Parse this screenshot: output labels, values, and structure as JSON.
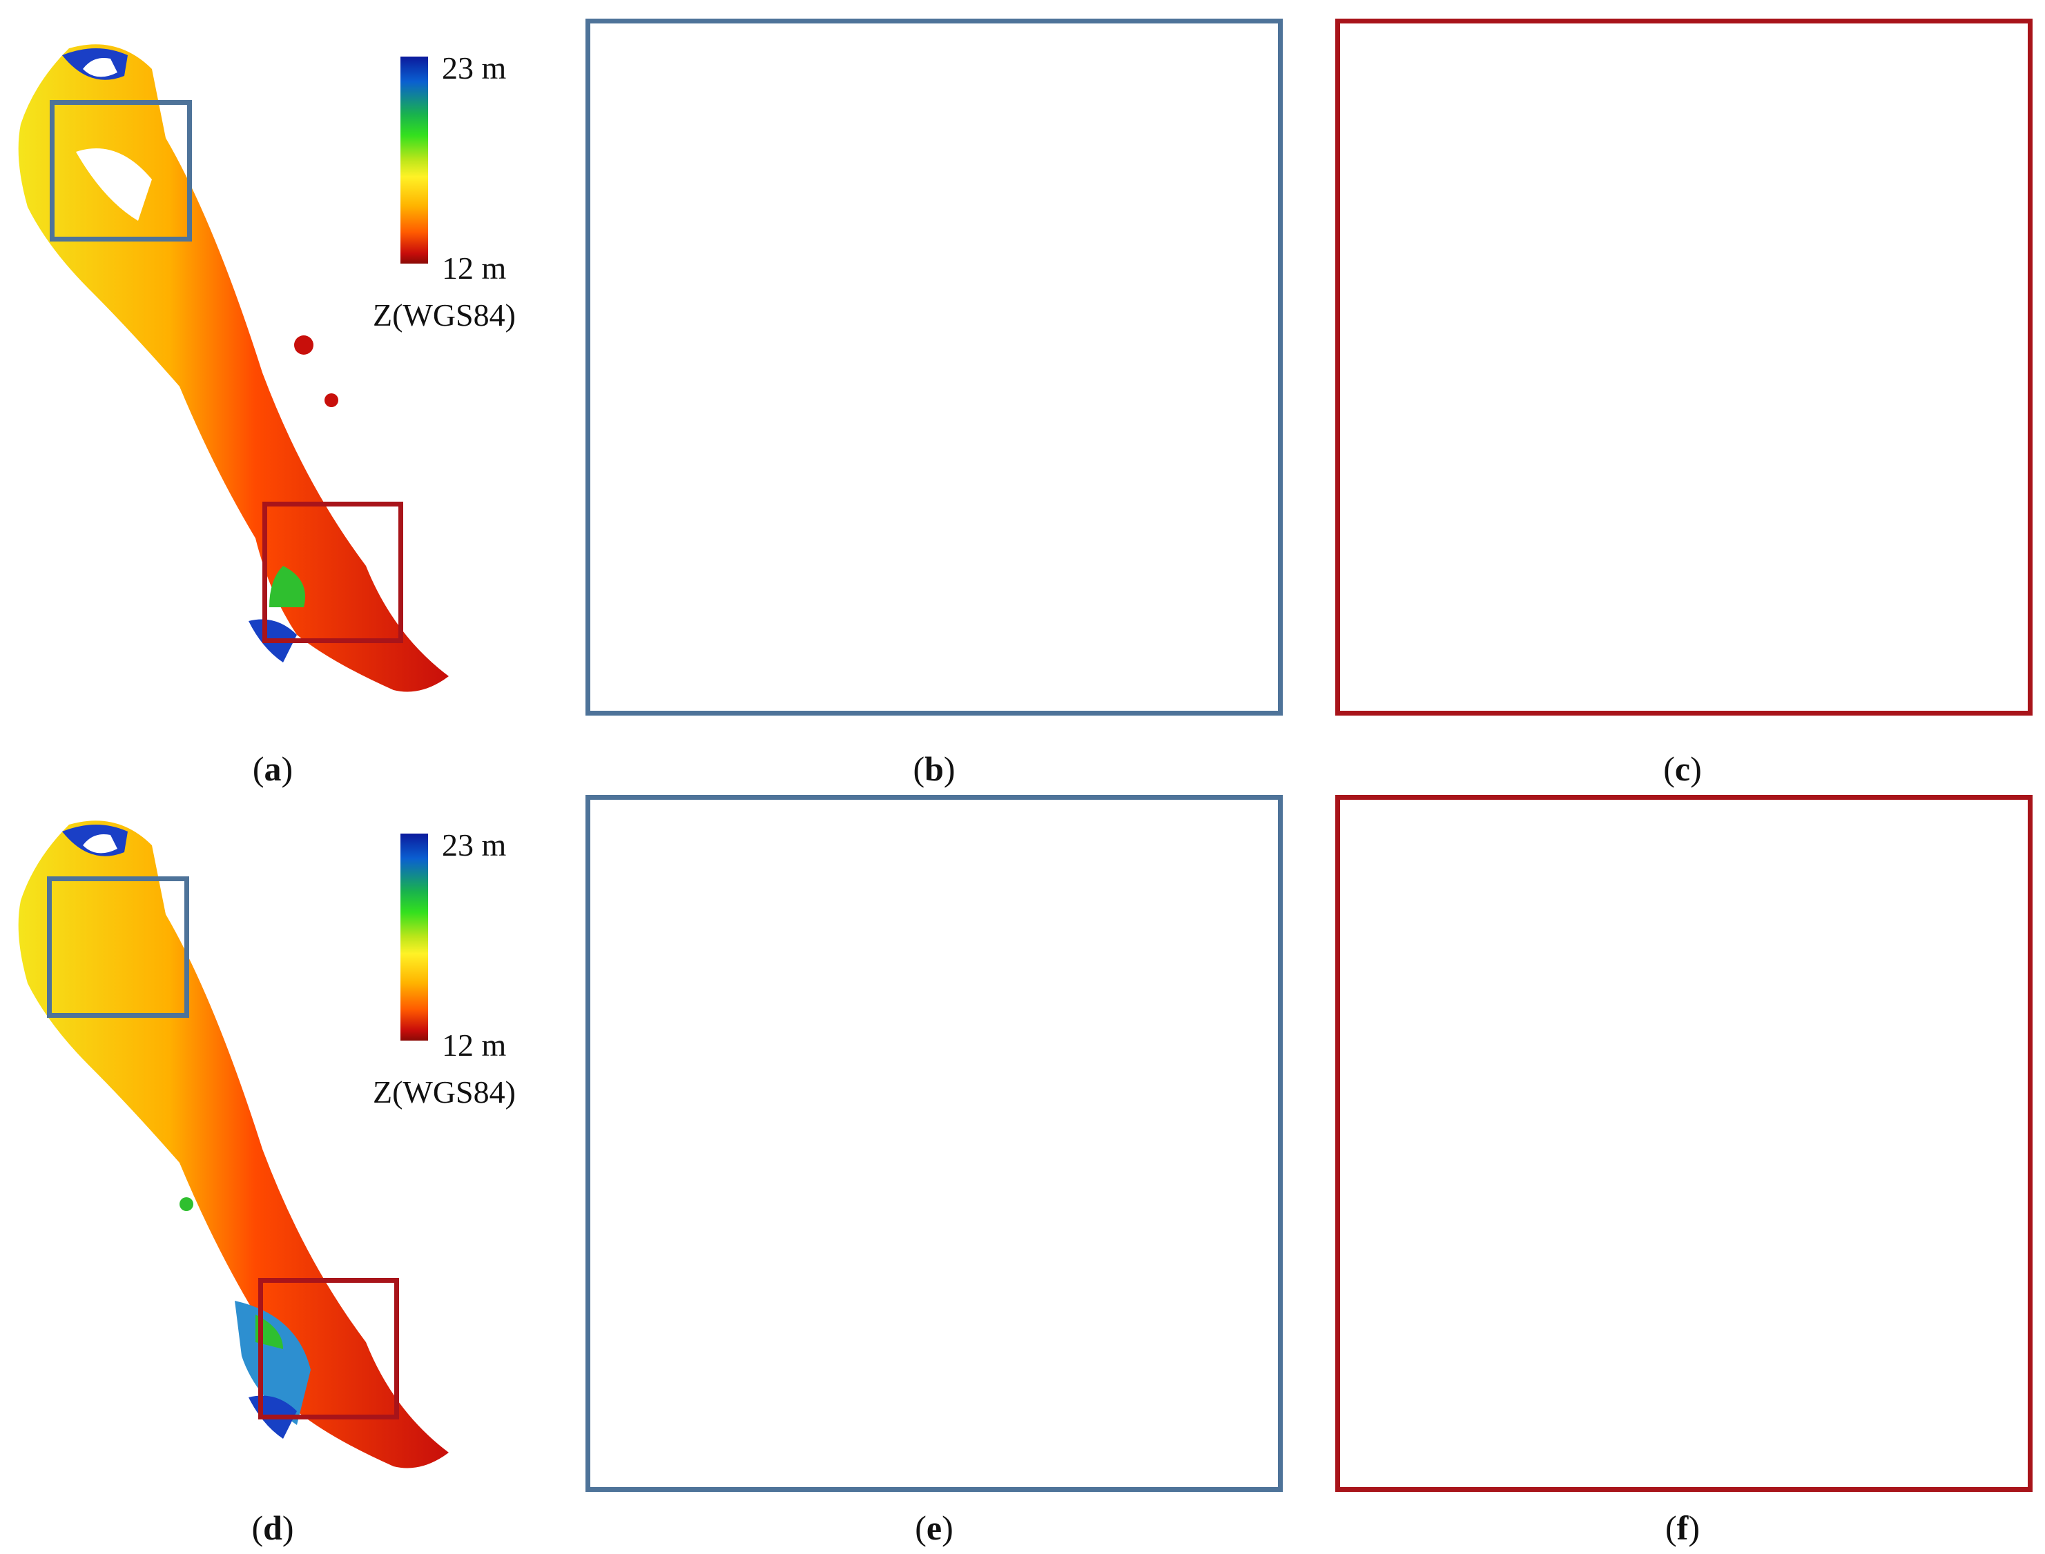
{
  "figure": {
    "panels": [
      {
        "id": "a",
        "caption": "(a)",
        "label_letter": "a"
      },
      {
        "id": "b",
        "caption": "(b)",
        "label_letter": "b"
      },
      {
        "id": "c",
        "caption": "(c)",
        "label_letter": "c"
      },
      {
        "id": "d",
        "caption": "(d)",
        "label_letter": "d"
      },
      {
        "id": "e",
        "caption": "(e)",
        "label_letter": "e"
      },
      {
        "id": "f",
        "caption": "(f)",
        "label_letter": "f"
      }
    ],
    "colorbar_top": {
      "max_label": "23 m",
      "min_label": "12 m",
      "axis_title": "Z(WGS84)"
    },
    "colorbar_bottom": {
      "max_label": "23 m",
      "min_label": "12 m",
      "axis_title": "Z(WGS84)"
    },
    "colors": {
      "blue_frame": "#4e7399",
      "red_frame": "#a8141a",
      "low": "#8a0a06",
      "high": "#0b1a9c"
    }
  }
}
